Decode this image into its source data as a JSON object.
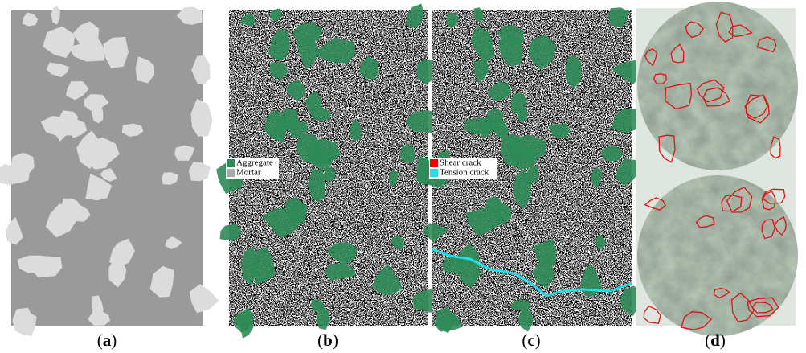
{
  "panels": [
    {
      "caption": [
        "(",
        "a",
        ")"
      ]
    },
    {
      "caption": [
        "(",
        "b",
        ")"
      ],
      "legend": [
        "Aggregate",
        "Mortar"
      ]
    },
    {
      "caption": [
        "(",
        "c",
        ")"
      ],
      "legend": [
        "Shear crack",
        "Tension crack"
      ]
    },
    {
      "caption": [
        "(",
        "d",
        ")"
      ]
    }
  ]
}
